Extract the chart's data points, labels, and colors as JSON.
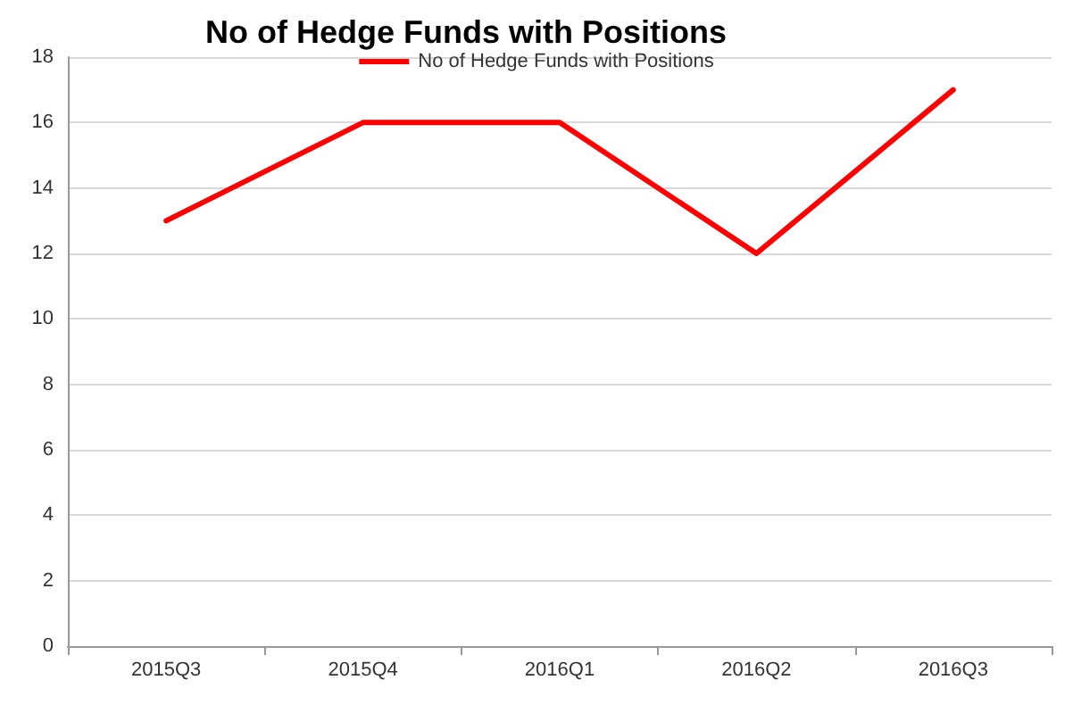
{
  "chart_data": {
    "type": "line",
    "title": "No of Hedge Funds with Positions",
    "categories": [
      "2015Q3",
      "2015Q4",
      "2016Q1",
      "2016Q2",
      "2016Q3"
    ],
    "series": [
      {
        "name": "No of Hedge Funds with Positions",
        "color": "#ff0000",
        "values": [
          13,
          16,
          16,
          12,
          17
        ]
      }
    ],
    "ylim": [
      0,
      18
    ],
    "yticks": [
      0,
      2,
      4,
      6,
      8,
      10,
      12,
      14,
      16,
      18
    ],
    "grid": "y",
    "legend": "top",
    "marker": "none",
    "line_style": "solid"
  }
}
